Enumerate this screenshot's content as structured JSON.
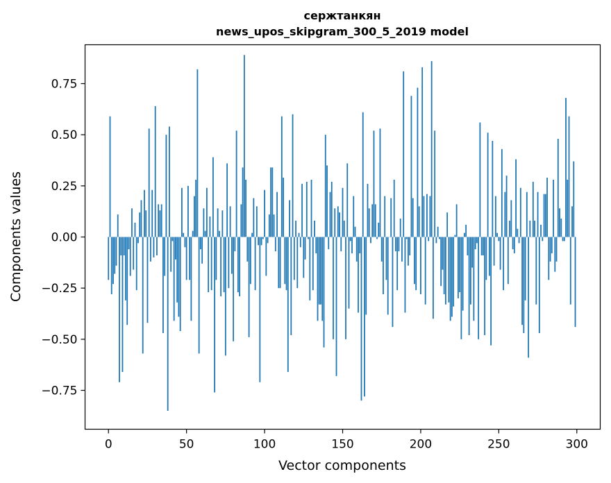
{
  "chart_data": {
    "type": "bar",
    "title": "сержтанкян",
    "subtitle": "news_upos_skipgram_300_5_2019 model",
    "xlabel": "Vector components",
    "ylabel": "Components values",
    "xlim": [
      -15,
      315
    ],
    "ylim": [
      -0.94,
      0.94
    ],
    "xticks": [
      0,
      50,
      100,
      150,
      200,
      250,
      300
    ],
    "xtick_labels": [
      "0",
      "50",
      "100",
      "150",
      "200",
      "250",
      "300"
    ],
    "yticks": [
      -0.75,
      -0.5,
      -0.25,
      0.0,
      0.25,
      0.5,
      0.75
    ],
    "ytick_labels": [
      "−0.75",
      "−0.50",
      "−0.25",
      "0.00",
      "0.25",
      "0.50",
      "0.75"
    ],
    "grid": false,
    "bar_color": "#1f77b4",
    "categories_count": 300,
    "values": [
      -0.21,
      0.59,
      -0.28,
      -0.23,
      -0.18,
      -0.14,
      0.11,
      -0.71,
      -0.09,
      -0.66,
      -0.09,
      -0.31,
      -0.43,
      -0.06,
      -0.19,
      0.14,
      -0.16,
      0.07,
      -0.26,
      -0.03,
      0.12,
      0.18,
      -0.57,
      0.23,
      0.13,
      -0.42,
      0.53,
      -0.12,
      0.23,
      -0.1,
      0.64,
      -0.09,
      0.16,
      0.13,
      0.16,
      -0.47,
      -0.19,
      0.5,
      -0.85,
      0.54,
      -0.17,
      -0.02,
      -0.41,
      -0.11,
      -0.32,
      -0.39,
      -0.46,
      0.24,
      0.02,
      -0.05,
      -0.21,
      0.25,
      -0.21,
      -0.41,
      0.03,
      0.2,
      0.28,
      0.82,
      -0.57,
      -0.06,
      -0.13,
      0.14,
      0.03,
      0.24,
      -0.27,
      0.1,
      -0.26,
      0.39,
      -0.76,
      -0.21,
      0.14,
      0.03,
      -0.29,
      0.13,
      -0.27,
      -0.58,
      0.36,
      -0.25,
      0.15,
      -0.18,
      -0.51,
      -0.07,
      0.52,
      -0.27,
      -0.29,
      0.16,
      0.34,
      0.89,
      0.28,
      -0.12,
      -0.49,
      -0.23,
      0.02,
      0.19,
      -0.26,
      0.15,
      -0.04,
      -0.71,
      -0.04,
      -0.01,
      0.23,
      -0.19,
      -0.03,
      0.11,
      0.34,
      0.34,
      0.11,
      -0.07,
      0.22,
      -0.25,
      -0.25,
      0.59,
      0.29,
      -0.23,
      -0.26,
      -0.66,
      0.18,
      -0.48,
      0.6,
      -0.21,
      0.08,
      -0.25,
      0.02,
      -0.05,
      0.26,
      -0.2,
      -0.11,
      0.27,
      -0.01,
      -0.31,
      0.28,
      -0.26,
      0.08,
      -0.08,
      -0.41,
      -0.33,
      -0.33,
      -0.41,
      -0.54,
      0.5,
      0.35,
      -0.06,
      0.22,
      0.27,
      -0.5,
      0.14,
      -0.68,
      0.15,
      0.12,
      -0.07,
      0.24,
      0.08,
      -0.5,
      0.36,
      -0.35,
      -0.02,
      -0.08,
      0.2,
      0.05,
      -0.12,
      -0.37,
      -0.08,
      -0.8,
      0.61,
      -0.78,
      -0.38,
      0.26,
      0.14,
      -0.03,
      0.16,
      0.52,
      0.16,
      -0.01,
      0.07,
      0.53,
      -0.12,
      -0.28,
      0.2,
      -0.21,
      -0.38,
      0.0,
      0.19,
      -0.44,
      0.28,
      -0.07,
      -0.26,
      -0.07,
      0.09,
      -0.12,
      0.81,
      -0.37,
      -0.01,
      -0.14,
      -0.09,
      0.69,
      0.19,
      -0.23,
      -0.26,
      0.73,
      0.15,
      -0.28,
      0.83,
      0.2,
      -0.33,
      0.21,
      -0.02,
      0.2,
      0.86,
      -0.4,
      0.52,
      -0.03,
      0.05,
      -0.01,
      -0.24,
      -0.16,
      -0.28,
      -0.33,
      0.12,
      -0.32,
      -0.41,
      -0.39,
      -0.34,
      0.01,
      0.16,
      -0.3,
      -0.27,
      -0.5,
      -0.36,
      0.02,
      0.06,
      -0.09,
      -0.48,
      -0.33,
      -0.15,
      -0.41,
      -0.06,
      -0.03,
      -0.5,
      0.56,
      -0.09,
      -0.09,
      -0.48,
      -0.21,
      0.51,
      -0.19,
      -0.53,
      0.47,
      -0.14,
      0.2,
      0.02,
      -0.02,
      -0.16,
      0.43,
      -0.26,
      0.22,
      0.3,
      -0.23,
      0.08,
      0.18,
      -0.06,
      -0.08,
      0.38,
      0.04,
      -0.03,
      0.24,
      -0.43,
      -0.47,
      -0.31,
      0.22,
      -0.59,
      0.08,
      0.0,
      0.27,
      0.08,
      -0.33,
      0.22,
      -0.47,
      0.06,
      -0.02,
      0.21,
      0.21,
      0.29,
      -0.21,
      -0.12,
      -0.08,
      0.28,
      -0.17,
      -0.12,
      0.48,
      0.14,
      0.09,
      -0.02,
      -0.02,
      0.68,
      0.28,
      0.59,
      -0.33,
      0.15,
      0.37,
      -0.44
    ]
  }
}
